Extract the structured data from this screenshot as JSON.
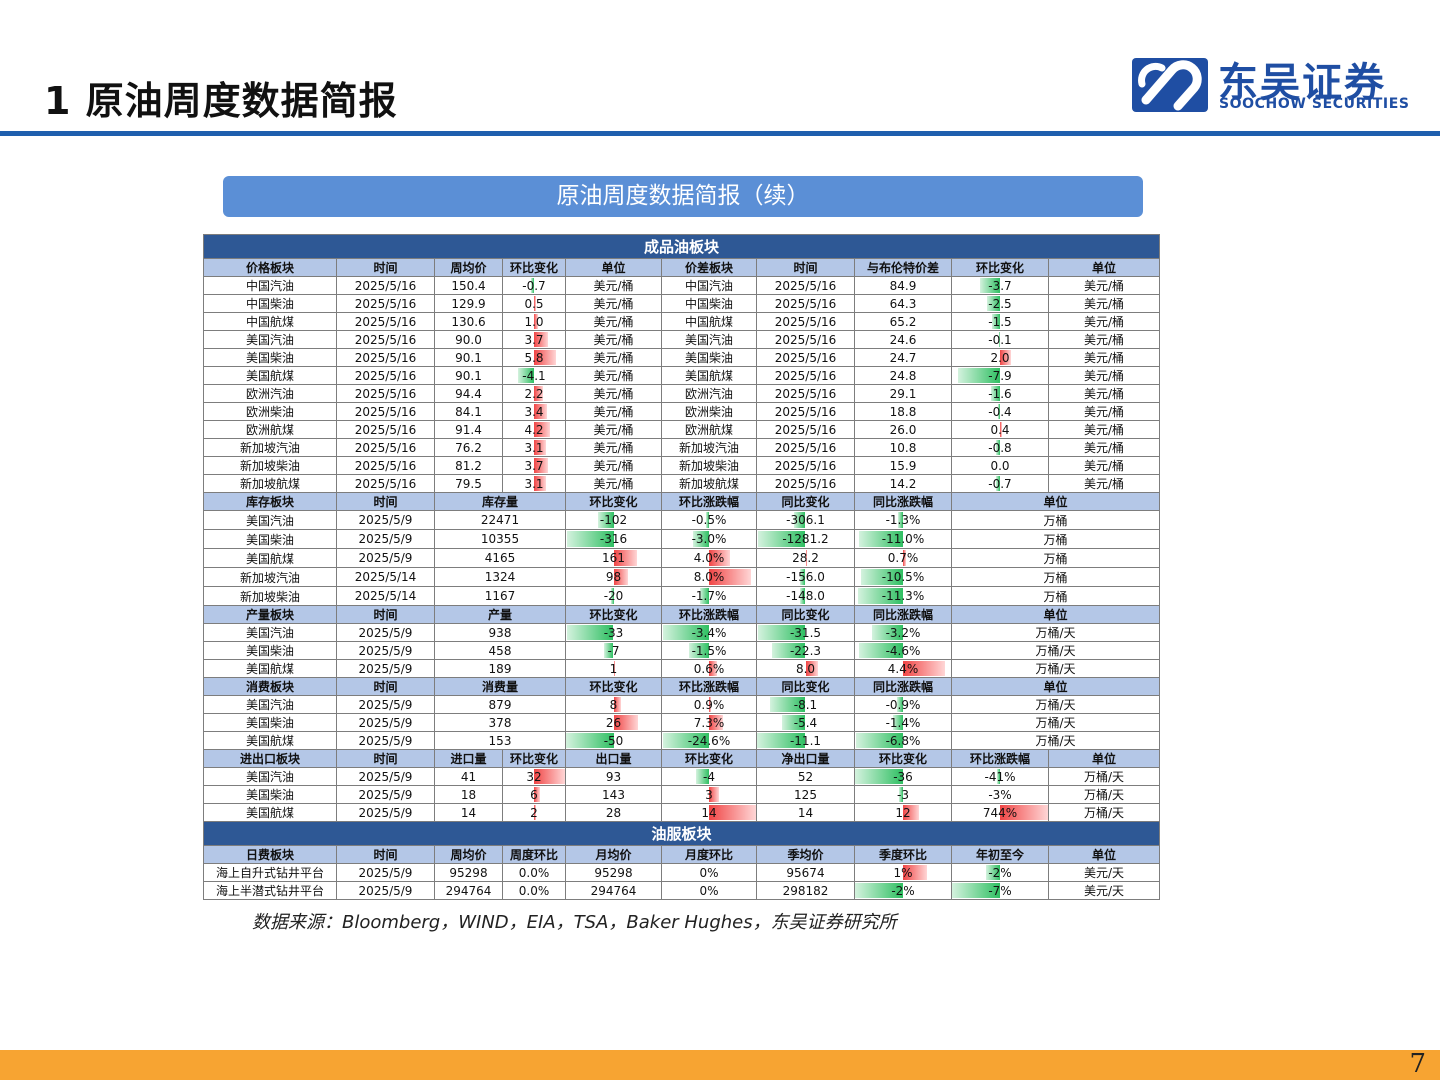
{
  "header": {
    "title": "1 原油周度数据简报",
    "logo_cn": "东吴证券",
    "logo_en": "SOOCHOW SECURITIES"
  },
  "banner": "原油周度数据简报（续）",
  "colors": {
    "pos_bar": "#f04545",
    "neg_bar": "#2fbf62",
    "section": "#2e5895",
    "header": "#b4c7e7",
    "banner": "#5b8fd6",
    "footer": "#f7a432",
    "rule": "#1f5fae"
  },
  "table": {
    "product": {
      "section": "成品油板块",
      "headers": [
        "价格板块",
        "时间",
        "周均价",
        "环比变化",
        "单位",
        "价差板块",
        "时间",
        "与布伦特价差",
        "环比变化",
        "单位"
      ],
      "rows": [
        [
          "中国汽油",
          "2025/5/16",
          "150.4",
          "-0.7",
          "美元/桶",
          "中国汽油",
          "2025/5/16",
          "84.9",
          "-3.7",
          "美元/桶"
        ],
        [
          "中国柴油",
          "2025/5/16",
          "129.9",
          "0.5",
          "美元/桶",
          "中国柴油",
          "2025/5/16",
          "64.3",
          "-2.5",
          "美元/桶"
        ],
        [
          "中国航煤",
          "2025/5/16",
          "130.6",
          "1.0",
          "美元/桶",
          "中国航煤",
          "2025/5/16",
          "65.2",
          "-1.5",
          "美元/桶"
        ],
        [
          "美国汽油",
          "2025/5/16",
          "90.0",
          "3.7",
          "美元/桶",
          "美国汽油",
          "2025/5/16",
          "24.6",
          "-0.1",
          "美元/桶"
        ],
        [
          "美国柴油",
          "2025/5/16",
          "90.1",
          "5.8",
          "美元/桶",
          "美国柴油",
          "2025/5/16",
          "24.7",
          "2.0",
          "美元/桶"
        ],
        [
          "美国航煤",
          "2025/5/16",
          "90.1",
          "-4.1",
          "美元/桶",
          "美国航煤",
          "2025/5/16",
          "24.8",
          "-7.9",
          "美元/桶"
        ],
        [
          "欧洲汽油",
          "2025/5/16",
          "94.4",
          "2.2",
          "美元/桶",
          "欧洲汽油",
          "2025/5/16",
          "29.1",
          "-1.6",
          "美元/桶"
        ],
        [
          "欧洲柴油",
          "2025/5/16",
          "84.1",
          "3.4",
          "美元/桶",
          "欧洲柴油",
          "2025/5/16",
          "18.8",
          "-0.4",
          "美元/桶"
        ],
        [
          "欧洲航煤",
          "2025/5/16",
          "91.4",
          "4.2",
          "美元/桶",
          "欧洲航煤",
          "2025/5/16",
          "26.0",
          "0.4",
          "美元/桶"
        ],
        [
          "新加坡汽油",
          "2025/5/16",
          "76.2",
          "3.1",
          "美元/桶",
          "新加坡汽油",
          "2025/5/16",
          "10.8",
          "-0.8",
          "美元/桶"
        ],
        [
          "新加坡柴油",
          "2025/5/16",
          "81.2",
          "3.7",
          "美元/桶",
          "新加坡柴油",
          "2025/5/16",
          "15.9",
          "0.0",
          "美元/桶"
        ],
        [
          "新加坡航煤",
          "2025/5/16",
          "79.5",
          "3.1",
          "美元/桶",
          "新加坡航煤",
          "2025/5/16",
          "14.2",
          "-0.7",
          "美元/桶"
        ]
      ]
    },
    "inventory": {
      "headers": [
        "库存板块",
        "时间",
        "库存量",
        "环比变化",
        "环比涨跌幅",
        "同比变化",
        "同比涨跌幅",
        "单位"
      ],
      "rows": [
        [
          "美国汽油",
          "2025/5/9",
          "22471",
          "-102",
          "-0.5%",
          "-306.1",
          "-1.3%",
          "万桶"
        ],
        [
          "美国柴油",
          "2025/5/9",
          "10355",
          "-316",
          "-3.0%",
          "-1281.2",
          "-11.0%",
          "万桶"
        ],
        [
          "美国航煤",
          "2025/5/9",
          "4165",
          "161",
          "4.0%",
          "28.2",
          "0.7%",
          "万桶"
        ],
        [
          "新加坡汽油",
          "2025/5/14",
          "1324",
          "98",
          "8.0%",
          "-156.0",
          "-10.5%",
          "万桶"
        ],
        [
          "新加坡柴油",
          "2025/5/14",
          "1167",
          "-20",
          "-1.7%",
          "-148.0",
          "-11.3%",
          "万桶"
        ]
      ]
    },
    "production": {
      "headers": [
        "产量板块",
        "时间",
        "产量",
        "环比变化",
        "环比涨跌幅",
        "同比变化",
        "同比涨跌幅",
        "单位"
      ],
      "rows": [
        [
          "美国汽油",
          "2025/5/9",
          "938",
          "-33",
          "-3.4%",
          "-31.5",
          "-3.2%",
          "万桶/天"
        ],
        [
          "美国柴油",
          "2025/5/9",
          "458",
          "-7",
          "-1.5%",
          "-22.3",
          "-4.6%",
          "万桶/天"
        ],
        [
          "美国航煤",
          "2025/5/9",
          "189",
          "1",
          "0.6%",
          "8.0",
          "4.4%",
          "万桶/天"
        ]
      ]
    },
    "consumption": {
      "headers": [
        "消费板块",
        "时间",
        "消费量",
        "环比变化",
        "环比涨跌幅",
        "同比变化",
        "同比涨跌幅",
        "单位"
      ],
      "rows": [
        [
          "美国汽油",
          "2025/5/9",
          "879",
          "8",
          "0.9%",
          "-8.1",
          "-0.9%",
          "万桶/天"
        ],
        [
          "美国柴油",
          "2025/5/9",
          "378",
          "26",
          "7.3%",
          "-5.4",
          "-1.4%",
          "万桶/天"
        ],
        [
          "美国航煤",
          "2025/5/9",
          "153",
          "-50",
          "-24.6%",
          "-11.1",
          "-6.8%",
          "万桶/天"
        ]
      ]
    },
    "trade": {
      "headers": [
        "进出口板块",
        "时间",
        "进口量",
        "环比变化",
        "出口量",
        "环比变化",
        "净出口量",
        "环比变化",
        "环比涨跌幅",
        "单位"
      ],
      "rows": [
        [
          "美国汽油",
          "2025/5/9",
          "41",
          "32",
          "93",
          "-4",
          "52",
          "-36",
          "-41%",
          "万桶/天"
        ],
        [
          "美国柴油",
          "2025/5/9",
          "18",
          "6",
          "143",
          "3",
          "125",
          "-3",
          "-3%",
          "万桶/天"
        ],
        [
          "美国航煤",
          "2025/5/9",
          "14",
          "2",
          "28",
          "14",
          "14",
          "12",
          "744%",
          "万桶/天"
        ]
      ]
    },
    "oilservice": {
      "section": "油服板块",
      "headers": [
        "日费板块",
        "时间",
        "周均价",
        "周度环比",
        "月均价",
        "月度环比",
        "季均价",
        "季度环比",
        "年初至今",
        "单位"
      ],
      "rows": [
        [
          "海上自升式钻井平台",
          "2025/5/9",
          "95298",
          "0.0%",
          "95298",
          "0%",
          "95674",
          "1%",
          "-2%",
          "美元/天"
        ],
        [
          "海上半潜式钻井平台",
          "2025/5/9",
          "294764",
          "0.0%",
          "294764",
          "0%",
          "298182",
          "-2%",
          "-7%",
          "美元/天"
        ]
      ]
    }
  },
  "source": "数据来源：Bloomberg，WIND，EIA，TSA，Baker Hughes，东吴证券研究所",
  "page_number": "7"
}
